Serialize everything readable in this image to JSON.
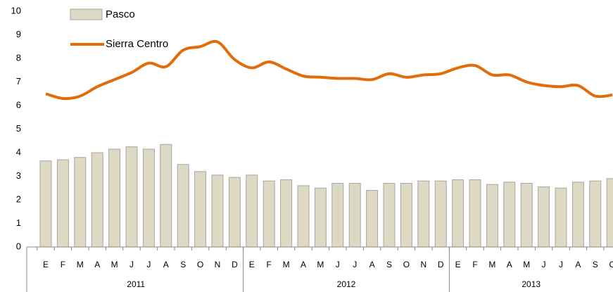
{
  "chart_data": {
    "type": "bar_line",
    "categories": [
      "E",
      "F",
      "M",
      "A",
      "M",
      "J",
      "J",
      "A",
      "S",
      "O",
      "N",
      "D",
      "E",
      "F",
      "M",
      "A",
      "M",
      "J",
      "J",
      "A",
      "S",
      "O",
      "N",
      "D",
      "E",
      "F",
      "M",
      "A",
      "M",
      "J",
      "J",
      "A",
      "S",
      "O"
    ],
    "x_groups": [
      {
        "label": "2011",
        "count": 12
      },
      {
        "label": "2012",
        "count": 12
      },
      {
        "label": "2013",
        "count": 10
      }
    ],
    "series": [
      {
        "name": "Pasco",
        "type": "bar",
        "color": "#ddd9c3",
        "values": [
          3.65,
          3.7,
          3.8,
          4.0,
          4.15,
          4.25,
          4.15,
          4.35,
          3.5,
          3.2,
          3.05,
          2.95,
          3.05,
          2.8,
          2.85,
          2.6,
          2.5,
          2.7,
          2.7,
          2.4,
          2.7,
          2.7,
          2.8,
          2.8,
          2.85,
          2.85,
          2.65,
          2.75,
          2.7,
          2.55,
          2.5,
          2.75,
          2.8,
          2.9
        ]
      },
      {
        "name": "Sierra Centro",
        "type": "line",
        "color": "#e36c09",
        "values": [
          6.5,
          6.3,
          6.4,
          6.8,
          7.1,
          7.4,
          7.8,
          7.65,
          8.35,
          8.5,
          8.7,
          7.95,
          7.6,
          7.85,
          7.55,
          7.25,
          7.2,
          7.15,
          7.15,
          7.1,
          7.35,
          7.2,
          7.3,
          7.35,
          7.6,
          7.7,
          7.3,
          7.3,
          7.0,
          6.85,
          6.8,
          6.85,
          6.4,
          6.45
        ]
      }
    ],
    "ylim": [
      0,
      10
    ],
    "yticks": [
      0,
      1,
      2,
      3,
      4,
      5,
      6,
      7,
      8,
      9,
      10
    ]
  }
}
